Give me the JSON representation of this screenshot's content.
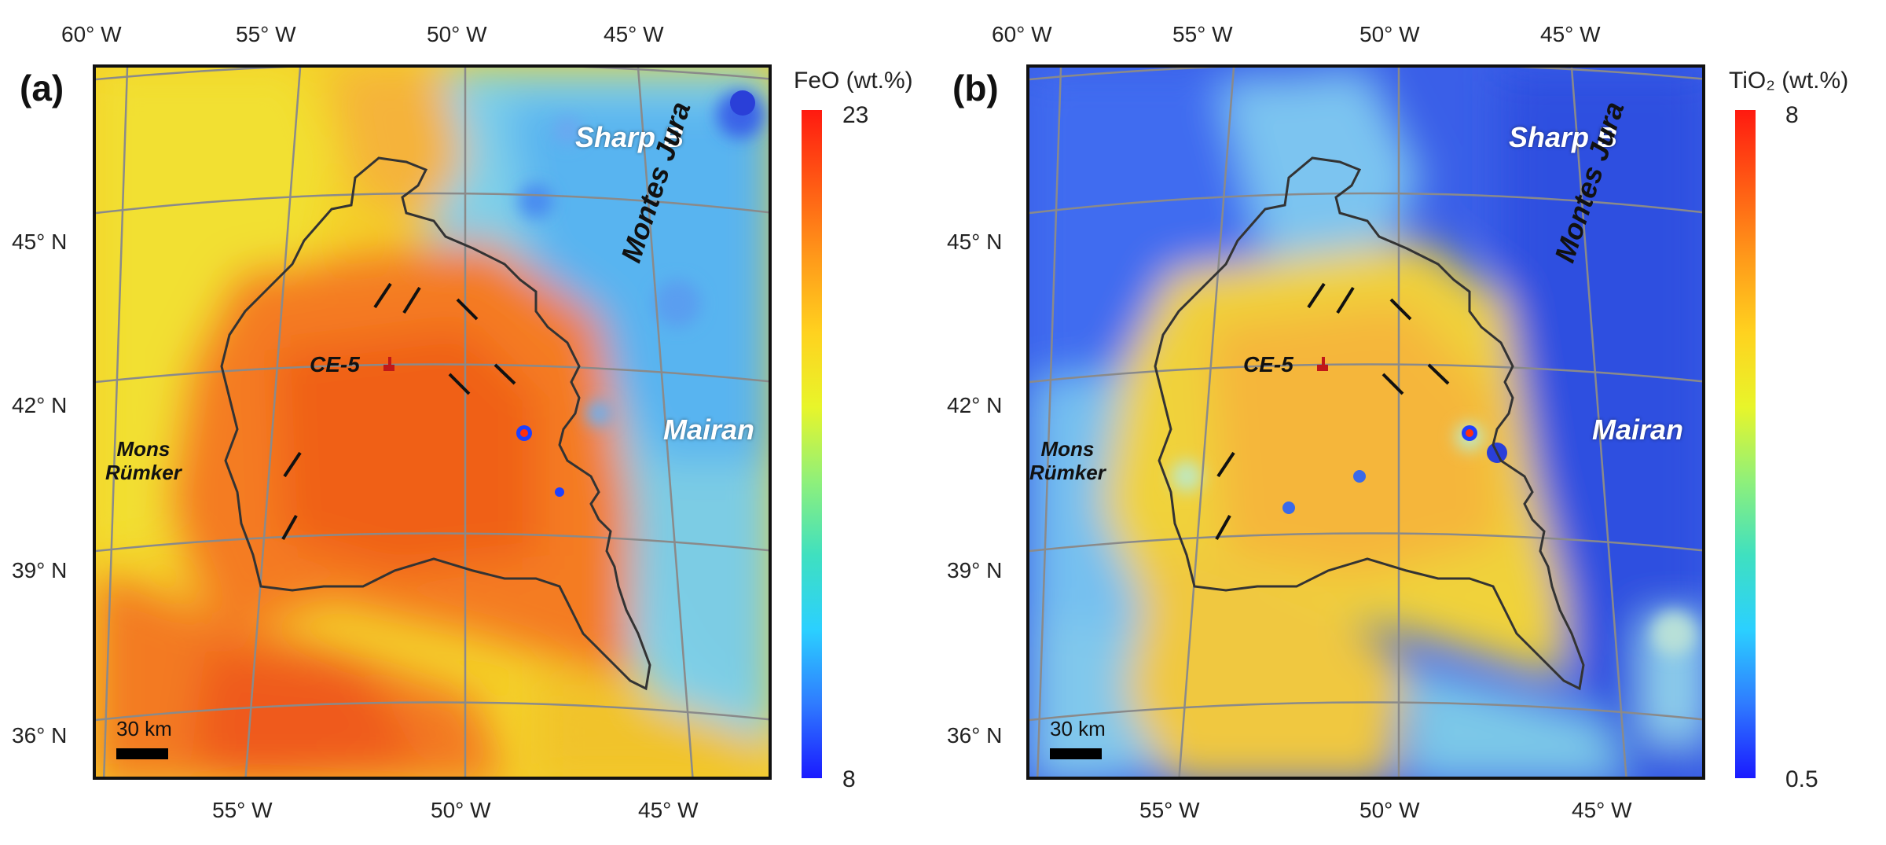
{
  "panels": [
    {
      "label": "(a)",
      "colorbar": {
        "title": "FeO (wt.%)",
        "max": "23",
        "min": "8",
        "colors": [
          "#1a1aff",
          "#2f7bff",
          "#2bd0ff",
          "#3fe0c0",
          "#8ff07a",
          "#e8f52a",
          "#ffd21f",
          "#ff9a1a",
          "#ff5a14",
          "#ff1a10"
        ]
      },
      "places": {
        "sharp_b": "Sharp B",
        "montes_jura": "Montes Jura",
        "mairan": "Mairan",
        "mons_rumker_1": "Mons",
        "mons_rumker_2": "Rümker",
        "ce5": "CE-5"
      },
      "scale": "30 km"
    },
    {
      "label": "(b)",
      "colorbar": {
        "title": "TiO₂ (wt.%)",
        "max": "8",
        "min": "0.5",
        "colors": [
          "#1a1aff",
          "#2f7bff",
          "#2bd0ff",
          "#3fe0c0",
          "#8ff07a",
          "#e8f52a",
          "#ffd21f",
          "#ff9a1a",
          "#ff5a14",
          "#ff1a10"
        ]
      },
      "places": {
        "sharp_b": "Sharp B",
        "montes_jura": "Montes Jura",
        "mairan": "Mairan",
        "mons_rumker_1": "Mons",
        "mons_rumker_2": "Rümker",
        "ce5": "CE-5"
      },
      "scale": "30 km"
    }
  ],
  "axes": {
    "top_lon": [
      "60° W",
      "55° W",
      "50° W",
      "45° W"
    ],
    "bottom_lon": [
      "55° W",
      "50° W",
      "45° W"
    ],
    "lat": [
      "45° N",
      "42° N",
      "39° N",
      "36° N"
    ]
  }
}
